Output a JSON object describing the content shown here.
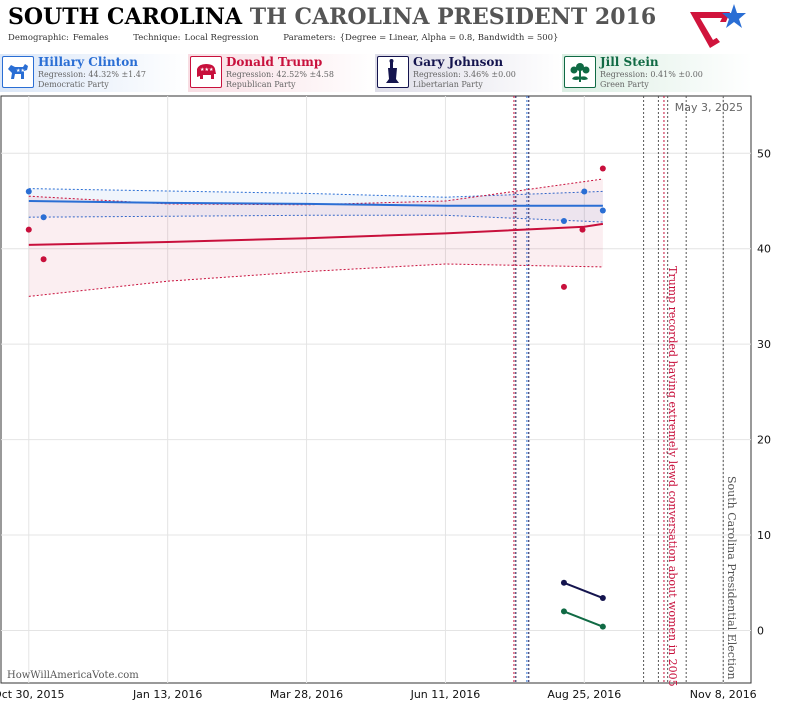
{
  "header": {
    "state": "SOUTH CAROLINA",
    "title_rest": "TH CAROLINA PRESIDENT 2016",
    "demographic_label": "Demographic:",
    "demographic_value": "Females",
    "technique_label": "Technique:",
    "technique_value": "Local Regression",
    "parameters_label": "Parameters:",
    "parameters_value": "{Degree = Linear, Alpha = 0.8, Bandwidth = 500}"
  },
  "candidates": [
    {
      "name": "Hillary Clinton",
      "regression": "Regression: 44.32% ±1.47",
      "party": "Democratic Party",
      "color": "#2a6ed4",
      "icon": "donkey-icon"
    },
    {
      "name": "Donald Trump",
      "regression": "Regression: 42.52% ±4.58",
      "party": "Republican Party",
      "color": "#c8103c",
      "icon": "elephant-icon"
    },
    {
      "name": "Gary Johnson",
      "regression": "Regression: 3.46% ±0.00",
      "party": "Libertarian Party",
      "color": "#14144e",
      "icon": "liberty-torch-icon"
    },
    {
      "name": "Jill Stein",
      "regression": "Regression: 0.41% ±0.00",
      "party": "Green Party",
      "color": "#106a44",
      "icon": "green-flower-icon"
    }
  ],
  "watermark": "HowWillAmericaVote.com",
  "chart_data": {
    "type": "scatter",
    "title": "SOUTH CAROLINA TH CAROLINA PRESIDENT 2016",
    "xlabel": "",
    "ylabel": "",
    "x_range": [
      "2015-10-15",
      "2016-11-23"
    ],
    "ylim": [
      -5.5,
      56
    ],
    "x_ticks": [
      {
        "date": "2015-10-30",
        "label": "Oct 30, 2015"
      },
      {
        "date": "2016-01-13",
        "label": "Jan 13, 2016"
      },
      {
        "date": "2016-03-28",
        "label": "Mar 28, 2016"
      },
      {
        "date": "2016-06-11",
        "label": "Jun 11, 2016"
      },
      {
        "date": "2016-08-25",
        "label": "Aug 25, 2016"
      },
      {
        "date": "2016-11-08",
        "label": "Nov 8, 2016"
      }
    ],
    "y_ticks": [
      0,
      10,
      20,
      30,
      40,
      50
    ],
    "grid": true,
    "date_stamp": "May 3, 2025",
    "series": [
      {
        "name": "Hillary Clinton",
        "color": "#2a6ed4",
        "points": [
          [
            "2015-10-30",
            46.0
          ],
          [
            "2015-11-07",
            43.3
          ],
          [
            "2016-08-14",
            42.9
          ],
          [
            "2016-08-25",
            46.0
          ],
          [
            "2016-09-04",
            44.0
          ]
        ],
        "trend": [
          [
            "2015-10-30",
            45.0
          ],
          [
            "2016-01-13",
            44.8
          ],
          [
            "2016-03-28",
            44.7
          ],
          [
            "2016-06-11",
            44.5
          ],
          [
            "2016-09-04",
            44.5
          ]
        ],
        "upper": [
          [
            "2015-10-30",
            46.3
          ],
          [
            "2016-03-28",
            45.8
          ],
          [
            "2016-06-11",
            45.4
          ],
          [
            "2016-09-04",
            46.0
          ]
        ],
        "lower": [
          [
            "2015-10-30",
            43.3
          ],
          [
            "2016-03-28",
            43.5
          ],
          [
            "2016-06-11",
            43.5
          ],
          [
            "2016-09-04",
            42.8
          ]
        ]
      },
      {
        "name": "Donald Trump",
        "color": "#c8103c",
        "points": [
          [
            "2015-10-30",
            42.0
          ],
          [
            "2015-11-07",
            38.9
          ],
          [
            "2016-08-14",
            36.0
          ],
          [
            "2016-08-24",
            42.0
          ],
          [
            "2016-09-04",
            48.4
          ]
        ],
        "trend": [
          [
            "2015-10-30",
            40.4
          ],
          [
            "2016-01-13",
            40.7
          ],
          [
            "2016-03-28",
            41.1
          ],
          [
            "2016-06-11",
            41.6
          ],
          [
            "2016-08-25",
            42.3
          ],
          [
            "2016-09-04",
            42.6
          ]
        ],
        "upper": [
          [
            "2015-10-30",
            45.5
          ],
          [
            "2016-01-13",
            44.7
          ],
          [
            "2016-03-28",
            44.6
          ],
          [
            "2016-06-11",
            45.0
          ],
          [
            "2016-09-04",
            47.3
          ]
        ],
        "lower": [
          [
            "2015-10-30",
            35.0
          ],
          [
            "2016-01-13",
            36.6
          ],
          [
            "2016-03-28",
            37.6
          ],
          [
            "2016-06-11",
            38.4
          ],
          [
            "2016-09-04",
            38.1
          ]
        ]
      },
      {
        "name": "Gary Johnson",
        "color": "#14144e",
        "points": [
          [
            "2016-08-14",
            5.0
          ],
          [
            "2016-09-04",
            3.4
          ]
        ],
        "trend": [
          [
            "2016-08-14",
            5.0
          ],
          [
            "2016-09-04",
            3.4
          ]
        ]
      },
      {
        "name": "Jill Stein",
        "color": "#106a44",
        "points": [
          [
            "2016-08-14",
            2.0
          ],
          [
            "2016-09-04",
            0.4
          ]
        ],
        "trend": [
          [
            "2016-08-14",
            2.0
          ],
          [
            "2016-09-04",
            0.4
          ]
        ]
      }
    ],
    "events": [
      {
        "date": "2016-07-18",
        "color": "#c8103c"
      },
      {
        "date": "2016-07-19",
        "color": "#14144e"
      },
      {
        "date": "2016-07-25",
        "color": "#2a6ed4"
      },
      {
        "date": "2016-07-26",
        "color": "#14144e"
      },
      {
        "date": "2016-09-26",
        "color": "#555555"
      },
      {
        "date": "2016-10-04",
        "color": "#555555"
      },
      {
        "date": "2016-10-07",
        "color": "#c8103c",
        "label": "Trump recorded having extremely lewd conversation about women in 2005"
      },
      {
        "date": "2016-10-09",
        "color": "#555555"
      },
      {
        "date": "2016-10-19",
        "color": "#555555"
      },
      {
        "date": "2016-11-08",
        "color": "#555555",
        "label": "South Carolina Presidential Election"
      }
    ]
  }
}
